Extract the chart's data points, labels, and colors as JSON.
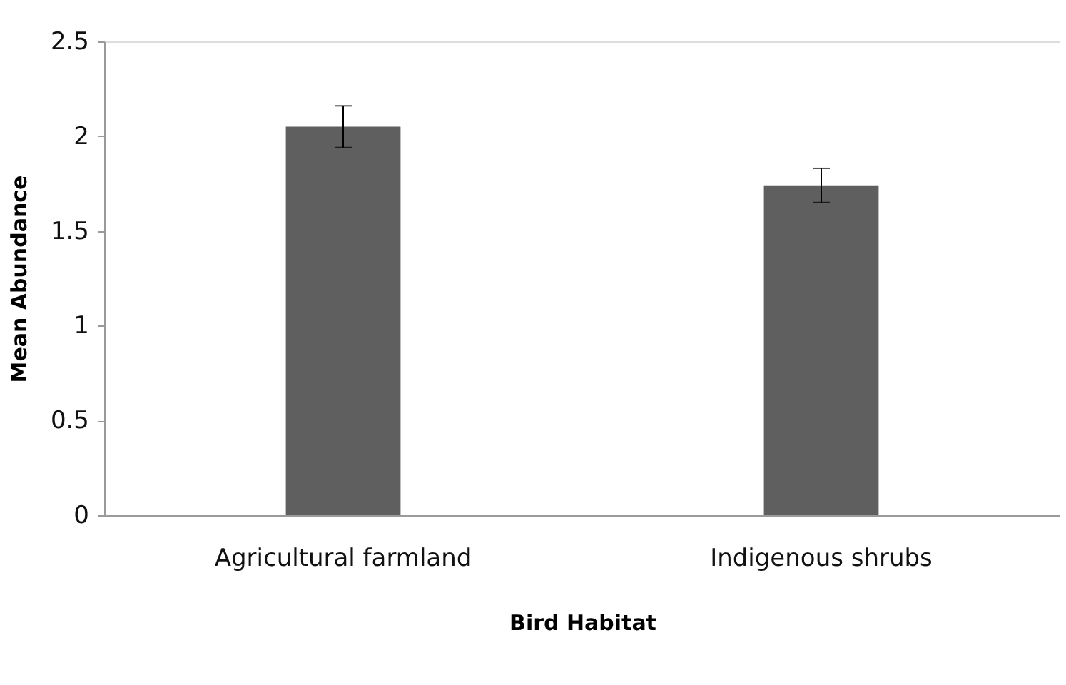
{
  "chart_data": {
    "type": "bar",
    "xlabel": "Bird Habitat",
    "ylabel": "Mean  Abundance",
    "categories": [
      "Agricultural farmland",
      "Indigenous shrubs"
    ],
    "values": [
      2.05,
      1.74
    ],
    "errors": [
      0.11,
      0.09
    ],
    "color": "#5f5f5f",
    "ylim": [
      0,
      2.5
    ],
    "yticks": [
      0,
      0.5,
      1,
      1.5,
      2,
      2.5
    ],
    "grid": false
  }
}
